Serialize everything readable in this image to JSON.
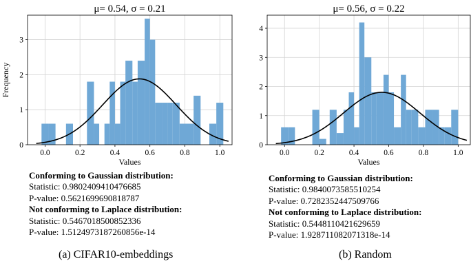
{
  "chart_data": [
    {
      "id": "a",
      "type": "histogram",
      "title": "μ= 0.54,  σ = 0.21",
      "xlabel": "Values",
      "ylabel": "Frequency",
      "xlim": [
        -0.1,
        1.07
      ],
      "ylim": [
        0,
        3.7
      ],
      "xticks": [
        "0.0",
        "0.2",
        "0.4",
        "0.6",
        "0.8",
        "1.0"
      ],
      "yticks": [
        "0",
        "1",
        "2",
        "3"
      ],
      "grid": true,
      "bar_color": "#6fa8d6",
      "curve_color": "#000000",
      "bins": [
        [
          -0.02,
          0.02,
          0.6
        ],
        [
          0.02,
          0.06,
          0.6
        ],
        [
          0.12,
          0.16,
          0.6
        ],
        [
          0.24,
          0.28,
          1.8
        ],
        [
          0.28,
          0.31,
          0.6
        ],
        [
          0.34,
          0.37,
          0.6
        ],
        [
          0.37,
          0.4,
          1.8
        ],
        [
          0.4,
          0.43,
          0.6
        ],
        [
          0.43,
          0.46,
          1.8
        ],
        [
          0.46,
          0.5,
          2.4
        ],
        [
          0.5,
          0.53,
          1.8
        ],
        [
          0.53,
          0.57,
          2.4
        ],
        [
          0.57,
          0.6,
          3.6
        ],
        [
          0.6,
          0.63,
          3.0
        ],
        [
          0.63,
          0.67,
          1.2
        ],
        [
          0.67,
          0.7,
          1.2
        ],
        [
          0.7,
          0.73,
          1.2
        ],
        [
          0.73,
          0.77,
          1.2
        ],
        [
          0.77,
          0.81,
          0.6
        ],
        [
          0.81,
          0.85,
          0.6
        ],
        [
          0.85,
          0.89,
          1.4
        ],
        [
          0.94,
          0.98,
          0.6
        ],
        [
          0.98,
          1.02,
          1.2
        ]
      ],
      "gaussian": {
        "mu": 0.54,
        "sigma": 0.21,
        "peak": 1.88
      },
      "stats": {
        "gaussian_heading": "Conforming to Gaussian distribution:",
        "gaussian_statistic": "Statistic: 0.9802409410476685",
        "gaussian_pvalue": "P-value: 0.5621699690818787",
        "laplace_heading": "Not conforming to Laplace distribution:",
        "laplace_statistic": "Statistic: 0.5467018500852336",
        "laplace_pvalue": "P-value: 1.5124973187260856e-14"
      },
      "caption": "(a) CIFAR10-embeddings"
    },
    {
      "id": "b",
      "type": "histogram",
      "title": "μ= 0.56,  σ = 0.22",
      "xlabel": "Values",
      "ylabel": "",
      "xlim": [
        -0.1,
        1.07
      ],
      "ylim": [
        0,
        4.45
      ],
      "xticks": [
        "0.0",
        "0.2",
        "0.4",
        "0.6",
        "0.8",
        "1.0"
      ],
      "yticks": [
        "0",
        "1",
        "2",
        "3",
        "4"
      ],
      "grid": true,
      "bar_color": "#6fa8d6",
      "curve_color": "#000000",
      "bins": [
        [
          -0.02,
          0.02,
          0.6
        ],
        [
          0.02,
          0.06,
          0.6
        ],
        [
          0.16,
          0.2,
          1.2
        ],
        [
          0.2,
          0.24,
          0.2
        ],
        [
          0.26,
          0.3,
          1.2
        ],
        [
          0.3,
          0.34,
          0.4
        ],
        [
          0.34,
          0.37,
          1.2
        ],
        [
          0.37,
          0.4,
          1.8
        ],
        [
          0.4,
          0.43,
          0.6
        ],
        [
          0.43,
          0.46,
          4.2
        ],
        [
          0.46,
          0.5,
          3.0
        ],
        [
          0.5,
          0.53,
          1.8
        ],
        [
          0.53,
          0.57,
          1.8
        ],
        [
          0.57,
          0.6,
          2.4
        ],
        [
          0.6,
          0.63,
          1.8
        ],
        [
          0.63,
          0.67,
          0.6
        ],
        [
          0.67,
          0.7,
          2.4
        ],
        [
          0.7,
          0.73,
          1.2
        ],
        [
          0.73,
          0.77,
          1.2
        ],
        [
          0.77,
          0.81,
          0.6
        ],
        [
          0.81,
          0.85,
          1.2
        ],
        [
          0.85,
          0.89,
          1.2
        ],
        [
          0.89,
          0.92,
          0.6
        ],
        [
          0.92,
          0.96,
          0.6
        ],
        [
          0.96,
          1.0,
          1.2
        ]
      ],
      "gaussian": {
        "mu": 0.56,
        "sigma": 0.22,
        "peak": 1.8
      },
      "stats": {
        "gaussian_heading": "Conforming to Gaussian distribution:",
        "gaussian_statistic": "Statistic: 0.9840073585510254",
        "gaussian_pvalue": "P-value: 0.7282352447509766",
        "laplace_heading": "Not conforming to Laplace distribution:",
        "laplace_statistic": "Statistic: 0.5448110421629659",
        "laplace_pvalue": "P-value: 1.928711082071318e-14"
      },
      "caption": "(b) Random"
    }
  ]
}
